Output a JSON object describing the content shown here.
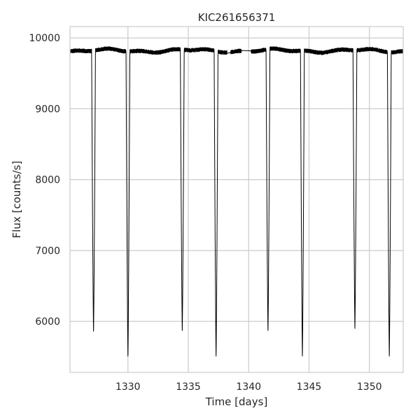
{
  "chart_data": {
    "type": "line",
    "title": "KIC261656371",
    "xlabel": "Time [days]",
    "ylabel": "Flux [counts/s]",
    "xlim": [
      1325.2,
      1352.8
    ],
    "ylim": [
      5280,
      10160
    ],
    "xticks": [
      1330,
      1335,
      1340,
      1345,
      1350
    ],
    "yticks": [
      6000,
      7000,
      8000,
      9000,
      10000
    ],
    "grid": true,
    "legend": "none",
    "series": [
      {
        "color": "#000000",
        "baseline_flux": 9820,
        "data_range": [
          1325.2,
          1352.8
        ],
        "gaps": [
          [
            1338.2,
            1338.5
          ],
          [
            1339.4,
            1340.2
          ]
        ],
        "eclipses": [
          {
            "time": 1327.15,
            "min_flux": 5860
          },
          {
            "time": 1330.0,
            "min_flux": 5510
          },
          {
            "time": 1334.5,
            "min_flux": 5870
          },
          {
            "time": 1337.3,
            "min_flux": 5510
          },
          {
            "time": 1341.6,
            "min_flux": 5870
          },
          {
            "time": 1344.45,
            "min_flux": 5510
          },
          {
            "time": 1348.8,
            "min_flux": 5900
          },
          {
            "time": 1351.65,
            "min_flux": 5510
          }
        ]
      }
    ]
  }
}
